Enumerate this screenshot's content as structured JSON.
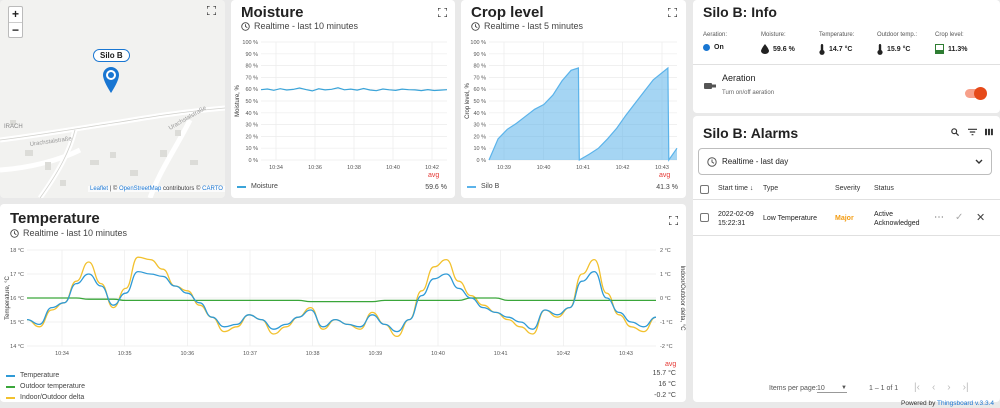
{
  "map": {
    "zoom_in": "+",
    "zoom_out": "−",
    "marker_label": "Silo B",
    "streets": [
      "IRACH",
      "Urachstalstraße",
      "Urachstalstraße"
    ],
    "attribution": {
      "leaflet": "Leaflet",
      "sep": " | © ",
      "osm": "OpenStreetMap",
      "mid": " contributors © ",
      "carto": "CARTO"
    }
  },
  "moisture": {
    "title": "Moisture",
    "subtitle": "Realtime - last 10 minutes",
    "y_label": "Moisture, %",
    "agg_label": "avg",
    "legend_name": "Moisture",
    "legend_value": "59.6 %",
    "chart_data": {
      "type": "line",
      "y_ticks": [
        "100 %",
        "90 %",
        "80 %",
        "70 %",
        "60 %",
        "50 %",
        "40 %",
        "30 %",
        "20 %",
        "10 %",
        "0 %"
      ],
      "x_ticks": [
        "10:34",
        "10:36",
        "10:38",
        "10:40",
        "10:42"
      ],
      "ylim": [
        0,
        100
      ],
      "series": [
        {
          "name": "Moisture",
          "color": "#3ba4d9",
          "values": [
            59.6,
            60.2,
            59.1,
            60.4,
            59.3,
            59.8,
            61.0,
            59.7,
            58.6,
            60.3,
            59.4,
            59.9,
            61.2,
            59.5,
            60.1,
            59.2,
            60.6,
            59.3,
            58.7,
            60.2,
            59.5,
            59.0,
            60.1,
            59.6,
            59.4,
            58.8,
            59.7,
            58.9,
            59.2,
            59.6
          ]
        }
      ]
    }
  },
  "crop": {
    "title": "Crop level",
    "subtitle": "Realtime - last 5 minutes",
    "y_label": "Crop level, %",
    "agg_label": "avg",
    "legend_name": "Silo B",
    "legend_value": "41.3 %",
    "chart_data": {
      "type": "area",
      "y_ticks": [
        "100 %",
        "90 %",
        "80 %",
        "70 %",
        "60 %",
        "50 %",
        "40 %",
        "30 %",
        "20 %",
        "10 %",
        "0 %"
      ],
      "x_ticks": [
        "10:39",
        "10:40",
        "10:41",
        "10:42",
        "10:43"
      ],
      "ylim": [
        0,
        100
      ],
      "series": [
        {
          "name": "Silo B",
          "color": "#5bb3ea",
          "x": [
            0,
            0.5,
            1,
            1.5,
            2,
            2.5,
            3,
            3.5,
            4,
            4.5,
            4.9,
            4.95,
            5.5,
            6,
            6.5,
            7,
            7.5,
            8,
            8.5,
            9,
            9.8,
            9.85,
            10.3
          ],
          "y": [
            0,
            18,
            26,
            31,
            37,
            43,
            47,
            55,
            67,
            76,
            78,
            0,
            5,
            10,
            18,
            27,
            38,
            48,
            58,
            68,
            78,
            0,
            10
          ]
        }
      ]
    }
  },
  "info": {
    "title": "Silo B: Info",
    "columns": [
      {
        "label": "Aeration:",
        "value": "On",
        "icon": "blue-dot-icon"
      },
      {
        "label": "Moisture:",
        "value": "59.6 %",
        "icon": "water-drop-icon"
      },
      {
        "label": "Temperature:",
        "value": "14.7 °C",
        "icon": "thermometer-icon"
      },
      {
        "label": "Outdoor temp.:",
        "value": "15.9 °C",
        "icon": "thermometer-icon"
      },
      {
        "label": "Crop level:",
        "value": "11.3%",
        "icon": "fill-level-icon"
      }
    ],
    "aeration_label": "Aeration",
    "aeration_hint": "Turn on/off aeration",
    "aeration_on": true,
    "colors": {
      "accent": "#e64a19",
      "blue": "#1976d2"
    }
  },
  "alarms": {
    "title": "Silo B: Alarms",
    "filter": "Realtime - last day",
    "headers": {
      "start_time": "Start time",
      "type": "Type",
      "severity": "Severity",
      "status": "Status"
    },
    "rows": [
      {
        "date": "2022-02-09",
        "time": "15:22:31",
        "type": "Low Temperature",
        "severity": "Major",
        "status1": "Active",
        "status2": "Acknowledged"
      }
    ],
    "items_per_page_label": "Items per page:",
    "items_per_page": "10",
    "range": "1 – 1 of 1",
    "colors": {
      "major": "#f39c12"
    }
  },
  "temperature": {
    "title": "Temperature",
    "subtitle": "Realtime - last 10 minutes",
    "y_label": "Temperature, °C",
    "y2_label": "Indoor/Outdoor delta, °C",
    "agg_label": "avg",
    "legend": [
      {
        "name": "Temperature",
        "value": "15.7 °C",
        "color": "#2f9ad6"
      },
      {
        "name": "Outdoor temperature",
        "value": "16 °C",
        "color": "#3aa63a"
      },
      {
        "name": "Indoor/Outdoor delta",
        "value": "-0.2 °C",
        "color": "#f2c12e"
      }
    ],
    "chart_data": {
      "type": "line",
      "y_ticks": [
        "18 °C",
        "17 °C",
        "16 °C",
        "15 °C",
        "14 °C"
      ],
      "y2_ticks": [
        "2 °C",
        "1 °C",
        "0 °C",
        "-1 °C",
        "-2 °C"
      ],
      "x_ticks": [
        "10:34",
        "10:35",
        "10:36",
        "10:37",
        "10:38",
        "10:39",
        "10:40",
        "10:41",
        "10:42",
        "10:43"
      ],
      "ylim": [
        14,
        18
      ],
      "y2lim": [
        -2,
        2
      ],
      "series": [
        {
          "name": "Temperature",
          "color": "#2f9ad6",
          "axis": "left",
          "values": [
            15.1,
            14.9,
            15.6,
            15.8,
            16.6,
            17.0,
            16.5,
            15.7,
            16.2,
            17.1,
            17.0,
            16.9,
            16.5,
            16.2,
            15.8,
            15.2,
            14.8,
            14.9,
            15.3,
            15.1,
            14.7,
            14.9,
            15.2,
            15.5,
            14.8,
            15.1,
            14.9,
            14.8,
            15.3,
            14.9,
            14.6,
            15.1,
            16.1,
            16.8,
            17.0,
            16.4,
            16.0,
            15.6,
            15.4,
            15.2,
            15.0,
            14.7,
            15.5,
            15.3,
            15.6,
            16.7,
            17.1,
            16.0,
            15.4,
            15.0,
            14.8,
            15.2
          ]
        },
        {
          "name": "Outdoor temperature",
          "color": "#3aa63a",
          "axis": "left",
          "values": [
            16.0,
            16.0,
            16.0,
            16.0,
            16.0,
            15.95,
            15.95,
            15.95,
            15.9,
            15.9,
            15.9,
            15.9,
            15.9,
            15.9,
            15.9,
            15.9,
            15.9,
            15.9,
            15.9,
            15.9,
            15.9,
            15.9,
            15.9,
            15.85,
            15.85,
            15.85,
            15.85,
            15.85,
            15.85,
            15.9,
            15.9,
            15.9,
            15.9,
            15.9,
            15.9,
            15.9,
            16.0,
            16.0,
            16.0,
            15.9,
            15.9,
            15.9,
            15.9,
            15.9,
            15.9,
            15.9,
            15.9,
            15.9,
            15.9,
            15.9,
            15.9,
            15.9
          ]
        },
        {
          "name": "Indoor/Outdoor delta",
          "color": "#f2c12e",
          "axis": "right",
          "values": [
            -0.9,
            -1.2,
            -0.5,
            -0.2,
            0.7,
            1.5,
            0.6,
            -0.4,
            0.4,
            1.7,
            1.6,
            1.2,
            0.5,
            0.3,
            -0.3,
            -0.8,
            -1.4,
            -1.2,
            -0.7,
            -0.9,
            -1.5,
            -1.2,
            -0.8,
            -0.4,
            -1.3,
            -0.9,
            -1.1,
            -1.3,
            -0.6,
            -1.1,
            -1.6,
            -0.9,
            0.3,
            1.3,
            1.6,
            0.7,
            0.1,
            -0.3,
            -0.6,
            -0.9,
            -1.2,
            -1.5,
            -0.5,
            -0.8,
            -0.4,
            1.0,
            1.6,
            0.2,
            -0.7,
            -1.2,
            -1.4,
            -0.8
          ]
        }
      ]
    }
  },
  "powered": {
    "prefix": "Powered by ",
    "link": "Thingsboard v.3.3.4"
  }
}
